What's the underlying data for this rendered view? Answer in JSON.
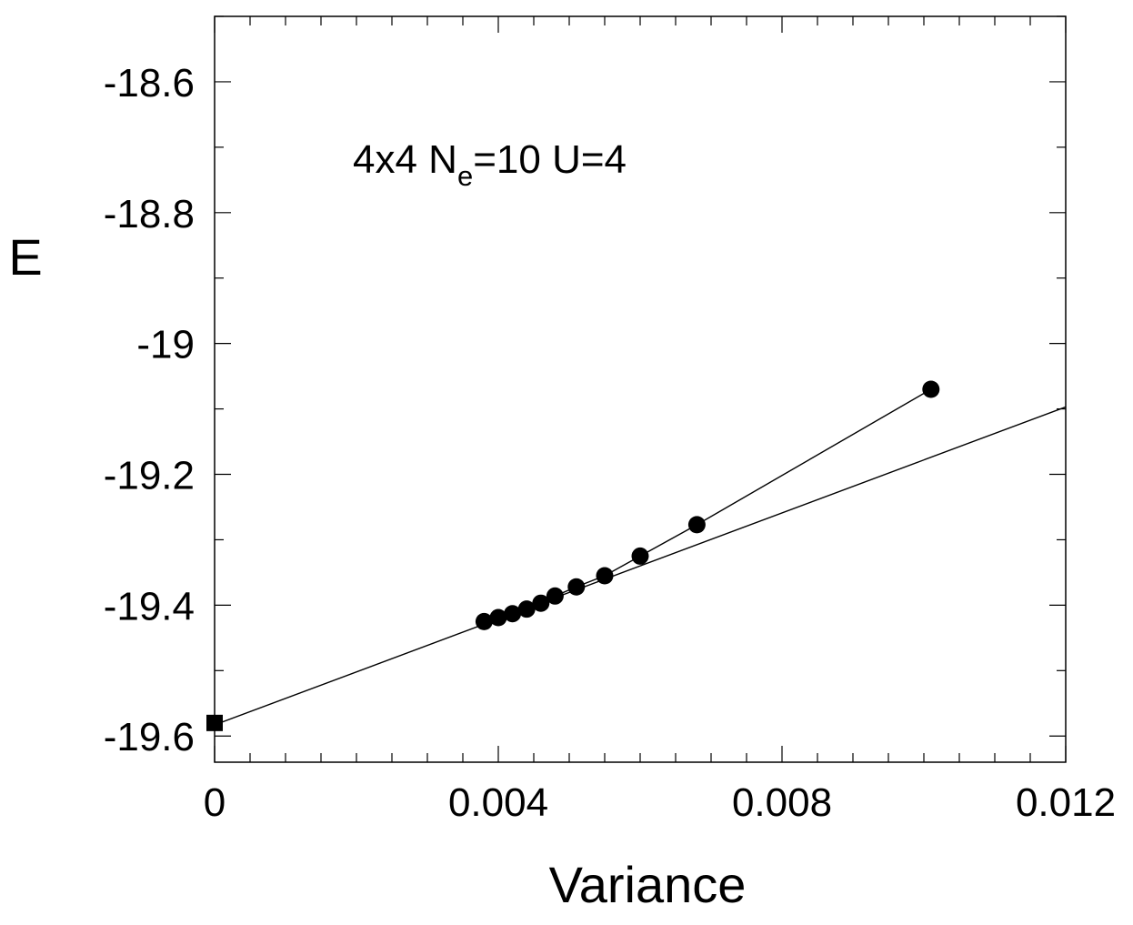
{
  "chart_data": {
    "type": "scatter",
    "xlabel": "Variance",
    "ylabel": "E",
    "xlim": [
      0,
      0.012
    ],
    "ylim": [
      -19.64,
      -18.5
    ],
    "x_ticks": [
      0,
      0.004,
      0.008,
      0.012
    ],
    "x_tick_labels": [
      "0",
      "0.004",
      "0.008",
      "0.012"
    ],
    "y_ticks": [
      -18.6,
      -18.8,
      -19.0,
      -19.2,
      -19.4,
      -19.6
    ],
    "y_tick_labels": [
      "-18.6",
      "-18.8",
      "-19",
      "-19.2",
      "-19.4",
      "-19.6"
    ],
    "grid": false,
    "annotation": {
      "main": "4x4 N",
      "subscript": "e",
      "rest": "=10 U=4"
    },
    "series": [
      {
        "marker": "circle",
        "connected": true,
        "x": [
          0.0038,
          0.004,
          0.0042,
          0.0044,
          0.0046,
          0.0048,
          0.0051,
          0.0055,
          0.006,
          0.0068,
          0.0101
        ],
        "y": [
          -19.425,
          -19.419,
          -19.413,
          -19.406,
          -19.397,
          -19.386,
          -19.372,
          -19.355,
          -19.325,
          -19.277,
          -19.07
        ]
      },
      {
        "marker": "square",
        "connected": false,
        "x": [
          0
        ],
        "y": [
          -19.58
        ]
      }
    ],
    "fit_line": {
      "x": [
        0,
        0.012
      ],
      "y": [
        -19.583,
        -19.097
      ]
    }
  }
}
